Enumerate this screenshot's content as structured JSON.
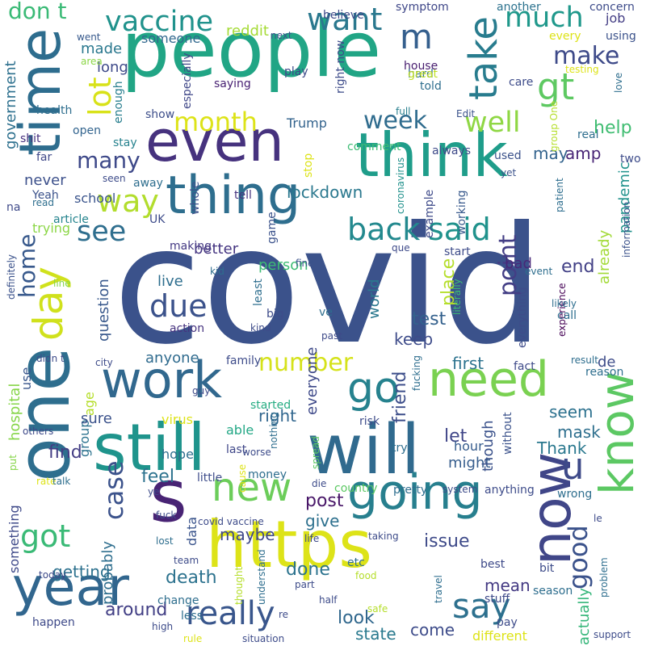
{
  "words": [
    {
      "text": "covid",
      "color": "#3b528b"
    },
    {
      "text": "people",
      "color": "#21a585"
    },
    {
      "text": "time",
      "color": "#2e6d8e"
    },
    {
      "text": "think",
      "color": "#1f9d8a"
    },
    {
      "text": "even",
      "color": "#46327e"
    },
    {
      "text": "thing",
      "color": "#2e6e8e"
    },
    {
      "text": "one",
      "color": "#2e6e8e"
    },
    {
      "text": "still",
      "color": "#1f948c"
    },
    {
      "text": "will",
      "color": "#306a8e"
    },
    {
      "text": "https",
      "color": "#dde318"
    },
    {
      "text": "year",
      "color": "#31668e"
    },
    {
      "text": "know",
      "color": "#5cc863"
    },
    {
      "text": "s",
      "color": "#482374"
    },
    {
      "text": "need",
      "color": "#7ad151"
    },
    {
      "text": "going",
      "color": "#277f8e"
    },
    {
      "text": "now",
      "color": "#404688"
    },
    {
      "text": "work",
      "color": "#31688e"
    },
    {
      "text": "new",
      "color": "#6ccd5a"
    },
    {
      "text": "day",
      "color": "#d0e11c"
    },
    {
      "text": "go",
      "color": "#26828e"
    },
    {
      "text": "m",
      "color": "#355f8d"
    },
    {
      "text": "gt",
      "color": "#5ec962"
    },
    {
      "text": "take",
      "color": "#287c8e"
    },
    {
      "text": "want",
      "color": "#2a788e"
    },
    {
      "text": "vaccine",
      "color": "#20928c"
    },
    {
      "text": "much",
      "color": "#1f988b"
    },
    {
      "text": "make",
      "color": "#3e4a89"
    },
    {
      "text": "well",
      "color": "#8fd744"
    },
    {
      "text": "lot",
      "color": "#d8e219"
    },
    {
      "text": "month",
      "color": "#dde318"
    },
    {
      "text": "week",
      "color": "#2f6c8e"
    },
    {
      "text": "many",
      "color": "#3e4989"
    },
    {
      "text": "way",
      "color": "#b2dd2d"
    },
    {
      "text": "back",
      "color": "#23898e"
    },
    {
      "text": "said",
      "color": "#20928c"
    },
    {
      "text": "see",
      "color": "#2e6e8e"
    },
    {
      "text": "due",
      "color": "#3b528b"
    },
    {
      "text": "home",
      "color": "#38598c"
    },
    {
      "text": "say",
      "color": "#2d708e"
    },
    {
      "text": "really",
      "color": "#39568c"
    },
    {
      "text": "got",
      "color": "#3aba76"
    },
    {
      "text": "case",
      "color": "#3b528b"
    },
    {
      "text": "u",
      "color": "#3e4a89"
    },
    {
      "text": "good",
      "color": "#3b528b"
    },
    {
      "text": "point",
      "color": "#433e85"
    },
    {
      "text": "number",
      "color": "#d5e21a"
    },
    {
      "text": "don t",
      "color": "#3aba76"
    },
    {
      "text": "lockdown",
      "color": "#2a788e"
    },
    {
      "text": "help",
      "color": "#40bd72"
    },
    {
      "text": "may",
      "color": "#33638d"
    },
    {
      "text": "amp",
      "color": "#482576"
    },
    {
      "text": "pandemic",
      "color": "#20928c"
    },
    {
      "text": "already",
      "color": "#a2da37"
    },
    {
      "text": "end",
      "color": "#424086"
    },
    {
      "text": "test",
      "color": "#34618d"
    },
    {
      "text": "first",
      "color": "#2c728e"
    },
    {
      "text": "de",
      "color": "#3e4c8a"
    },
    {
      "text": "right",
      "color": "#31668e"
    },
    {
      "text": "friend",
      "color": "#3d4e8a"
    },
    {
      "text": "let",
      "color": "#404688"
    },
    {
      "text": "seem",
      "color": "#2c718e"
    },
    {
      "text": "mask",
      "color": "#2e6f8e"
    },
    {
      "text": "Thank",
      "color": "#2a788e"
    },
    {
      "text": "find",
      "color": "#433d84"
    },
    {
      "text": "feel",
      "color": "#2c728e"
    },
    {
      "text": "post",
      "color": "#481668"
    },
    {
      "text": "give",
      "color": "#2d708e"
    },
    {
      "text": "issue",
      "color": "#3e4a89"
    },
    {
      "text": "maybe",
      "color": "#3f4889"
    },
    {
      "text": "done",
      "color": "#2c738e"
    },
    {
      "text": "death",
      "color": "#2c728e"
    },
    {
      "text": "getting",
      "color": "#2d718e"
    },
    {
      "text": "around",
      "color": "#423f85"
    },
    {
      "text": "look",
      "color": "#30678d"
    },
    {
      "text": "state",
      "color": "#29798e"
    },
    {
      "text": "come",
      "color": "#3e4c8a"
    },
    {
      "text": "mean",
      "color": "#443a83"
    },
    {
      "text": "actually",
      "color": "#34b679"
    },
    {
      "text": "everyone",
      "color": "#3e4989"
    },
    {
      "text": "keep",
      "color": "#3e4c8a"
    },
    {
      "text": "place",
      "color": "#b5de2b"
    },
    {
      "text": "world",
      "color": "#2a788e"
    },
    {
      "text": "live",
      "color": "#2e6e8e"
    },
    {
      "text": "question",
      "color": "#38588c"
    },
    {
      "text": "anyone",
      "color": "#2f6b8e"
    },
    {
      "text": "better",
      "color": "#453581"
    },
    {
      "text": "person",
      "color": "#3dbc74"
    },
    {
      "text": "bad",
      "color": "#482878"
    },
    {
      "text": "made",
      "color": "#2a788e"
    },
    {
      "text": "long",
      "color": "#3e4a89"
    },
    {
      "text": "someone",
      "color": "#31688e"
    },
    {
      "text": "reddit",
      "color": "#a5db36"
    },
    {
      "text": "job",
      "color": "#433d84"
    },
    {
      "text": "Trump",
      "color": "#33638d"
    },
    {
      "text": "government",
      "color": "#2d708e"
    },
    {
      "text": "never",
      "color": "#3c508b"
    },
    {
      "text": "school",
      "color": "#3a548c"
    },
    {
      "text": "age",
      "color": "#b5de2b"
    },
    {
      "text": "group",
      "color": "#2c728e"
    },
    {
      "text": "probably",
      "color": "#2e6e8e"
    },
    {
      "text": "sure",
      "color": "#3b528b"
    },
    {
      "text": "hospital",
      "color": "#86d549"
    },
    {
      "text": "use",
      "color": "#39568c"
    },
    {
      "text": "something",
      "color": "#3e4989"
    },
    {
      "text": "data",
      "color": "#3a548c"
    },
    {
      "text": "family",
      "color": "#3e4c8a"
    },
    {
      "text": "hope",
      "color": "#2e6e8e"
    },
    {
      "text": "last",
      "color": "#3f4788"
    },
    {
      "text": "virus",
      "color": "#dde318"
    },
    {
      "text": "able",
      "color": "#22a785"
    },
    {
      "text": "started",
      "color": "#25ac82"
    },
    {
      "text": "might",
      "color": "#365d8d"
    },
    {
      "text": "hour",
      "color": "#365c8d"
    },
    {
      "text": "though",
      "color": "#3b528b"
    },
    {
      "text": "experience",
      "color": "#440154"
    },
    {
      "text": "Yeah",
      "color": "#3b528b"
    },
    {
      "text": "na",
      "color": "#3e4a89"
    },
    {
      "text": "shit",
      "color": "#46307e"
    },
    {
      "text": "health",
      "color": "#2e6e8e"
    },
    {
      "text": "open",
      "color": "#32648e"
    },
    {
      "text": "went",
      "color": "#37598c"
    },
    {
      "text": "area",
      "color": "#8bd646"
    },
    {
      "text": "enough",
      "color": "#277e8e"
    },
    {
      "text": "especially",
      "color": "#3f4788"
    },
    {
      "text": "saying",
      "color": "#482173"
    },
    {
      "text": "show",
      "color": "#3d4e8a"
    },
    {
      "text": "stay",
      "color": "#26828e"
    },
    {
      "text": "far",
      "color": "#3f4889"
    },
    {
      "text": "away",
      "color": "#2e6e8e"
    },
    {
      "text": "trying",
      "color": "#8bd646"
    },
    {
      "text": "read",
      "color": "#2e6e8e"
    },
    {
      "text": "article",
      "color": "#25848e"
    },
    {
      "text": "UK",
      "color": "#3e4c8a"
    },
    {
      "text": "seen",
      "color": "#3e4c8a"
    },
    {
      "text": "whole",
      "color": "#3c508b"
    },
    {
      "text": "making",
      "color": "#443983"
    },
    {
      "text": "tell",
      "color": "#46337f"
    },
    {
      "text": "game",
      "color": "#3b528b"
    },
    {
      "text": "next",
      "color": "#3b528b"
    },
    {
      "text": "believe",
      "color": "#3e4a89"
    },
    {
      "text": "symptom",
      "color": "#3f4788"
    },
    {
      "text": "another",
      "color": "#2c728e"
    },
    {
      "text": "concern",
      "color": "#3e4c8a"
    },
    {
      "text": "using",
      "color": "#3b528b"
    },
    {
      "text": "every",
      "color": "#dde318"
    },
    {
      "text": "play",
      "color": "#3e4a89"
    },
    {
      "text": "right now",
      "color": "#3e4c8a"
    },
    {
      "text": "house",
      "color": "#481d6f"
    },
    {
      "text": "hard",
      "color": "#2e6e8e"
    },
    {
      "text": "great",
      "color": "#c0df25"
    },
    {
      "text": "told",
      "color": "#2e6e8e"
    },
    {
      "text": "care",
      "color": "#3e4c8a"
    },
    {
      "text": "testing",
      "color": "#dde318"
    },
    {
      "text": "love",
      "color": "#2e6e8e"
    },
    {
      "text": "full",
      "color": "#277f8e"
    },
    {
      "text": "Edit",
      "color": "#3b528b"
    },
    {
      "text": "group One",
      "color": "#b5de2b"
    },
    {
      "text": "real",
      "color": "#2e6e8e"
    },
    {
      "text": "comment",
      "color": "#3dbc74"
    },
    {
      "text": "coronavirus",
      "color": "#21918c"
    },
    {
      "text": "stop",
      "color": "#dde318"
    },
    {
      "text": "always",
      "color": "#3e4a89"
    },
    {
      "text": "used",
      "color": "#3b528b"
    },
    {
      "text": "yet",
      "color": "#3b528b"
    },
    {
      "text": "patient",
      "color": "#2e6e8e"
    },
    {
      "text": "two",
      "color": "#3e4c8a"
    },
    {
      "text": "information",
      "color": "#3b528b"
    },
    {
      "text": "example",
      "color": "#3e4a89"
    },
    {
      "text": "working",
      "color": "#38598c"
    },
    {
      "text": "que",
      "color": "#3e4a89"
    },
    {
      "text": "start",
      "color": "#3e4c8a"
    },
    {
      "text": "event",
      "color": "#2e6e8e"
    },
    {
      "text": "fine",
      "color": "#3b528b"
    },
    {
      "text": "line",
      "color": "#86d549"
    },
    {
      "text": "definitely",
      "color": "#3b528b"
    },
    {
      "text": "kid",
      "color": "#2e6e8e"
    },
    {
      "text": "least",
      "color": "#2e6e8e"
    },
    {
      "text": "big",
      "color": "#3e4c8a"
    },
    {
      "text": "ve",
      "color": "#2e6e8e"
    },
    {
      "text": "literally",
      "color": "#3dbc74"
    },
    {
      "text": "everything",
      "color": "#3e4c8a"
    },
    {
      "text": "likely",
      "color": "#2e6e8e"
    },
    {
      "text": "call",
      "color": "#2e6e8e"
    },
    {
      "text": "action",
      "color": "#46337f"
    },
    {
      "text": "kind",
      "color": "#3e4c8a"
    },
    {
      "text": "past",
      "color": "#3e4a89"
    },
    {
      "text": "didn t",
      "color": "#3e4c8a"
    },
    {
      "text": "city",
      "color": "#3e4c8a"
    },
    {
      "text": "fucking",
      "color": "#2e6e8e"
    },
    {
      "text": "fact",
      "color": "#3e4a89"
    },
    {
      "text": "result",
      "color": "#2e6e8e"
    },
    {
      "text": "reason",
      "color": "#2e6e8e"
    },
    {
      "text": "guy",
      "color": "#3e4a89"
    },
    {
      "text": "risk",
      "color": "#3e4c8a"
    },
    {
      "text": "without",
      "color": "#3b528b"
    },
    {
      "text": "try",
      "color": "#2e6e8e"
    },
    {
      "text": "others",
      "color": "#3e4a89"
    },
    {
      "text": "put",
      "color": "#86d549"
    },
    {
      "text": "nothing",
      "color": "#2e6e8e"
    },
    {
      "text": "spread",
      "color": "#5cc863"
    },
    {
      "text": "cause",
      "color": "#dde318"
    },
    {
      "text": "worse",
      "color": "#3e4c8a"
    },
    {
      "text": "money",
      "color": "#2e6e8e"
    },
    {
      "text": "little",
      "color": "#3e4c8a"
    },
    {
      "text": "rate",
      "color": "#dde318"
    },
    {
      "text": "talk",
      "color": "#2e6e8e"
    },
    {
      "text": "ye",
      "color": "#3e4c8a"
    },
    {
      "text": "die",
      "color": "#3e4c8a"
    },
    {
      "text": "country",
      "color": "#5cc863"
    },
    {
      "text": "pretty",
      "color": "#2e6e8e"
    },
    {
      "text": "system",
      "color": "#3e4c8a"
    },
    {
      "text": "anything",
      "color": "#3e4c8a"
    },
    {
      "text": "wrong",
      "color": "#2e6e8e"
    },
    {
      "text": "fuck",
      "color": "#3e4c8a"
    },
    {
      "text": "covid vaccine",
      "color": "#3e4c8a"
    },
    {
      "text": "lost",
      "color": "#2e6e8e"
    },
    {
      "text": "le",
      "color": "#3e4c8a"
    },
    {
      "text": "life",
      "color": "#3e4a89"
    },
    {
      "text": "taking",
      "color": "#3e4c8a"
    },
    {
      "text": "team",
      "color": "#3e4c8a"
    },
    {
      "text": "understand",
      "color": "#2e6e8e"
    },
    {
      "text": "part",
      "color": "#3e4c8a"
    },
    {
      "text": "etc",
      "color": "#2e6e8e"
    },
    {
      "text": "food",
      "color": "#b5de2b"
    },
    {
      "text": "travel",
      "color": "#2e6e8e"
    },
    {
      "text": "bit",
      "color": "#3e4c8a"
    },
    {
      "text": "best",
      "color": "#3e4a89"
    },
    {
      "text": "problem",
      "color": "#2e6e8e"
    },
    {
      "text": "today",
      "color": "#3e4a89"
    },
    {
      "text": "thought",
      "color": "#b5de2b"
    },
    {
      "text": "half",
      "color": "#3e4c8a"
    },
    {
      "text": "season",
      "color": "#2e6e8e"
    },
    {
      "text": "change",
      "color": "#2e6e8e"
    },
    {
      "text": "less",
      "color": "#2e6e8e"
    },
    {
      "text": "re",
      "color": "#3e4c8a"
    },
    {
      "text": "safe",
      "color": "#b5de2b"
    },
    {
      "text": "stuff",
      "color": "#3e4a89"
    },
    {
      "text": "pay",
      "color": "#3e4c8a"
    },
    {
      "text": "happen",
      "color": "#3e4a89"
    },
    {
      "text": "high",
      "color": "#3e4c8a"
    },
    {
      "text": "rule",
      "color": "#dde318"
    },
    {
      "text": "situation",
      "color": "#3e4c8a"
    },
    {
      "text": "different",
      "color": "#dde318"
    },
    {
      "text": "support",
      "color": "#3e4c8a"
    }
  ]
}
